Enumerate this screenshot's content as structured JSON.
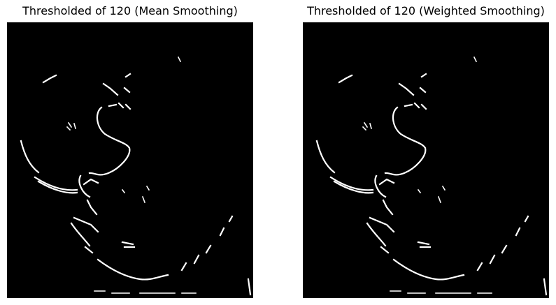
{
  "figure": {
    "background": "#ffffff",
    "panels": [
      {
        "title": "Thresholded of 120 (Mean Smoothing)",
        "image_background": "#000000",
        "edge_color": "#ffffff"
      },
      {
        "title": "Thresholded of 120 (Weighted Smoothing)",
        "image_background": "#000000",
        "edge_color": "#ffffff"
      }
    ]
  }
}
